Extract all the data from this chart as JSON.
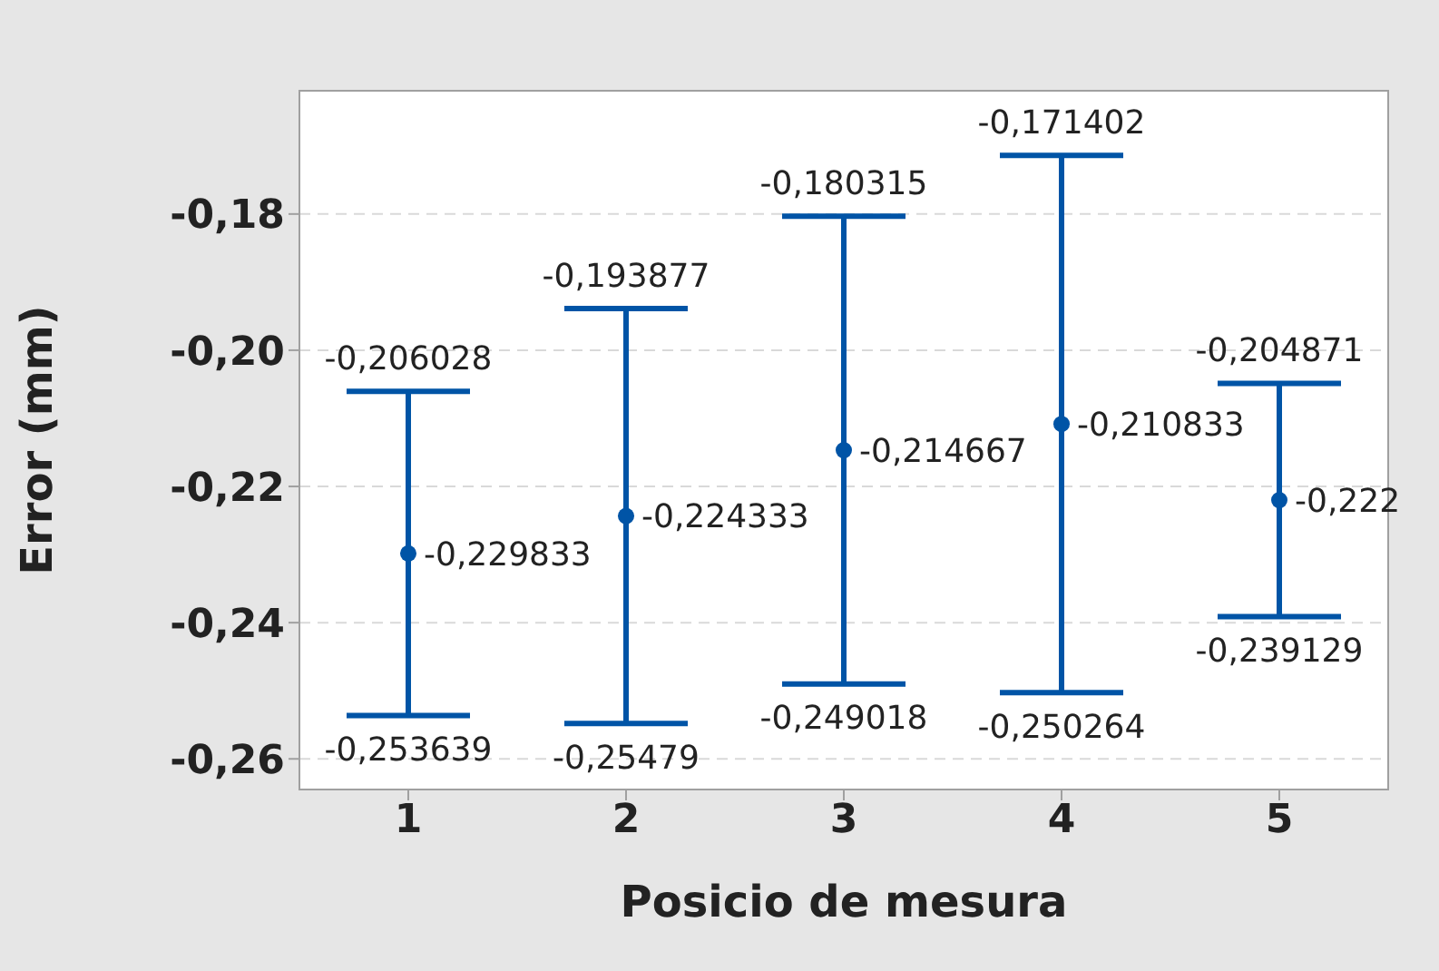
{
  "chart_data": {
    "type": "scatter",
    "xlabel": "Posicio de mesura",
    "ylabel": "Error (mm)",
    "categories": [
      "1",
      "2",
      "3",
      "4",
      "5"
    ],
    "series": [
      {
        "color": "#0054a6",
        "values": [
          -0.229833,
          -0.224333,
          -0.214667,
          -0.210833,
          -0.222
        ],
        "errors": [
          [
            0.023806,
            0.023805
          ],
          [
            0.030457,
            0.030456
          ],
          [
            0.034351,
            0.034352
          ],
          [
            0.039431,
            0.039431
          ],
          [
            0.017129,
            0.017129
          ]
        ],
        "value_labels": [
          "-0,229833",
          "-0,224333",
          "-0,214667",
          "-0,210833",
          "-0,222"
        ]
      }
    ],
    "annotations": [
      "-0,206028",
      "-0,253639",
      "-0,193877",
      "-0,25479",
      "-0,180315",
      "-0,249018",
      "-0,171402",
      "-0,250264",
      "-0,204871",
      "-0,239129"
    ],
    "ylim": [
      -0.2645,
      -0.1619
    ],
    "yticks": [
      {
        "value": -0.26,
        "label": "-0,26"
      },
      {
        "value": -0.24,
        "label": "-0,24"
      },
      {
        "value": -0.22,
        "label": "-0,22"
      },
      {
        "value": -0.2,
        "label": "-0,20"
      },
      {
        "value": -0.18,
        "label": "-0,18"
      }
    ],
    "grid": "y",
    "marker": "circle",
    "legend": false
  }
}
